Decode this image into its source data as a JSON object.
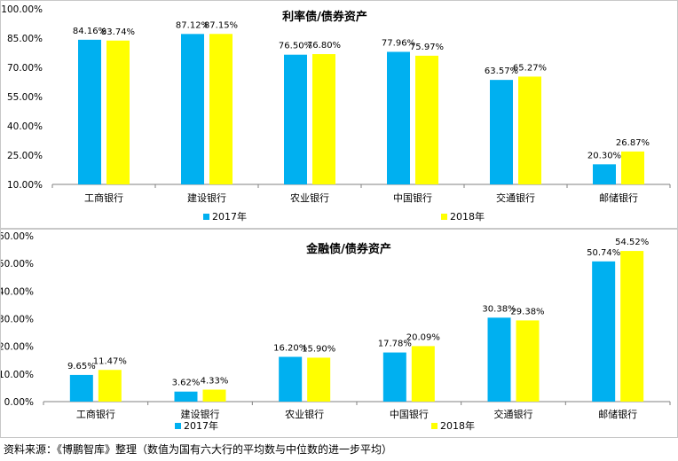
{
  "colors": {
    "series_2017": "#00B0F0",
    "series_2018": "#FFFF00",
    "axis": "#808080",
    "text": "#000000"
  },
  "chart_data": [
    {
      "type": "bar",
      "title": "利率债/债券资产",
      "categories": [
        "工商银行",
        "建设银行",
        "农业银行",
        "中国银行",
        "交通银行",
        "邮储银行"
      ],
      "series": [
        {
          "name": "2017年",
          "values": [
            84.16,
            87.12,
            76.5,
            77.96,
            63.57,
            20.3
          ],
          "labels": [
            "84.16%",
            "87.12%",
            "76.50%",
            "77.96%",
            "63.57%",
            "20.30%"
          ]
        },
        {
          "name": "2018年",
          "values": [
            83.74,
            87.15,
            76.8,
            75.97,
            65.27,
            26.87
          ],
          "labels": [
            "83.74%",
            "87.15%",
            "76.80%",
            "75.97%",
            "65.27%",
            "26.87%"
          ]
        }
      ],
      "ylim": [
        10,
        100
      ],
      "yticks": [
        "10.00%",
        "25.00%",
        "40.00%",
        "55.00%",
        "70.00%",
        "85.00%",
        "100.00%"
      ],
      "legend_position": "bottom",
      "grid": false
    },
    {
      "type": "bar",
      "title": "金融债/债券资产",
      "categories": [
        "工商银行",
        "建设银行",
        "农业银行",
        "中国银行",
        "交通银行",
        "邮储银行"
      ],
      "series": [
        {
          "name": "2017年",
          "values": [
            9.65,
            3.62,
            16.2,
            17.78,
            30.38,
            50.74
          ],
          "labels": [
            "9.65%",
            "3.62%",
            "16.20%",
            "17.78%",
            "30.38%",
            "50.74%"
          ]
        },
        {
          "name": "2018年",
          "values": [
            11.47,
            4.33,
            15.9,
            20.09,
            29.38,
            54.52
          ],
          "labels": [
            "11.47%",
            "4.33%",
            "15.90%",
            "20.09%",
            "29.38%",
            "54.52%"
          ]
        }
      ],
      "ylim": [
        0,
        60
      ],
      "yticks": [
        "0.00%",
        "10.00%",
        "20.00%",
        "30.00%",
        "40.00%",
        "50.00%",
        "60.00%"
      ],
      "legend_position": "bottom",
      "grid": false
    }
  ],
  "footer": {
    "source": "资料来源：《博鹏智库》整理（数值为国有六大行的平均数与中位数的进一步平均）"
  }
}
